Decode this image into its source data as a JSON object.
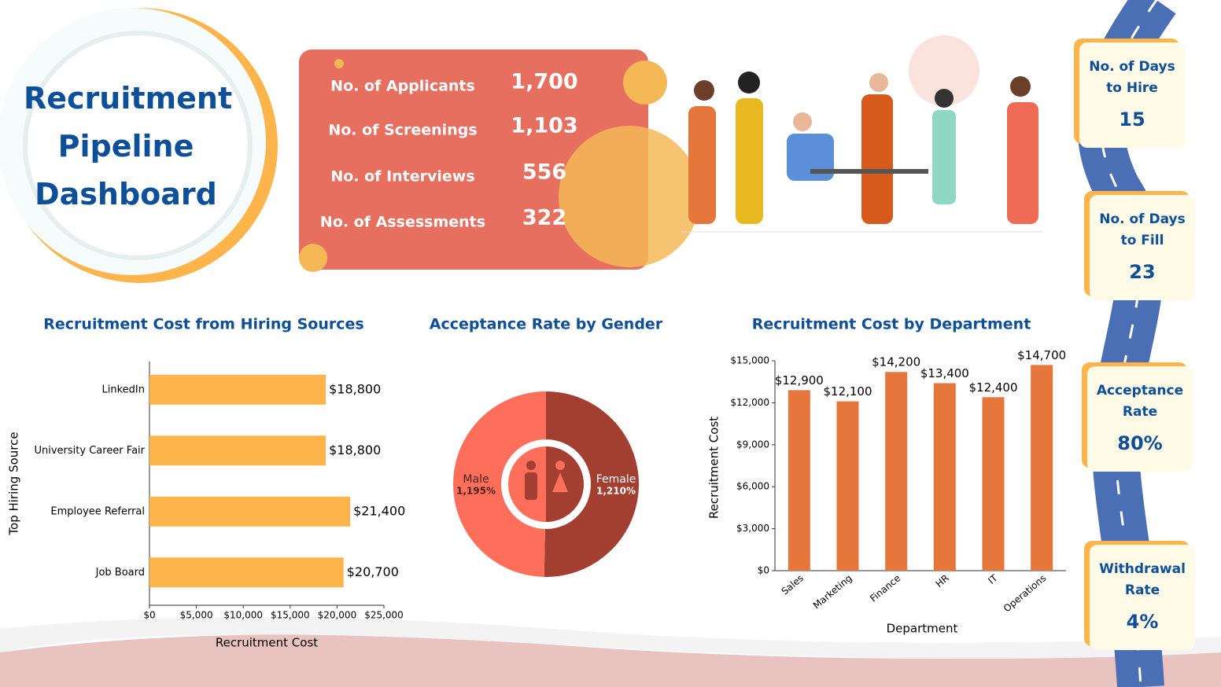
{
  "title": "Recruitment Pipeline Dashboard",
  "funnel": [
    {
      "label": "No. of Applicants",
      "value": "1,700"
    },
    {
      "label": "No. of Screenings",
      "value": "1,103"
    },
    {
      "label": "No. of Interviews",
      "value": "556"
    },
    {
      "label": "No. of Assessments",
      "value": "322"
    }
  ],
  "kpis": [
    {
      "label": "No. of Days to Hire",
      "value": "15"
    },
    {
      "label": "No. of Days to Fill",
      "value": "23"
    },
    {
      "label": "Acceptance Rate",
      "value": "80%"
    },
    {
      "label": "Withdrawal Rate",
      "value": "4%"
    }
  ],
  "chart_data": [
    {
      "type": "hbar",
      "title": "Recruitment Cost from Hiring Sources",
      "categories": [
        "LinkedIn",
        "University Career Fair",
        "Employee Referral",
        "Job Board"
      ],
      "values": [
        18800,
        18800,
        21400,
        20700
      ],
      "value_labels": [
        "$18,800",
        "$18,800",
        "$21,400",
        "$20,700"
      ],
      "color": "#fdb44b",
      "xlim": [
        0,
        25000
      ],
      "xticks": [
        {
          "value": 0,
          "label": "$0"
        },
        {
          "value": 5000,
          "label": "$5,000"
        },
        {
          "value": 10000,
          "label": "$10,000"
        },
        {
          "value": 15000,
          "label": "$15,000"
        },
        {
          "value": 20000,
          "label": "$20,000"
        },
        {
          "value": 25000,
          "label": "$25,000"
        }
      ],
      "xlabel": "Recruitment Cost",
      "ylabel": "Top Hiring Source"
    },
    {
      "type": "donut",
      "title": "Acceptance Rate by Gender",
      "categories": [
        "Male",
        "Female"
      ],
      "values": [
        1195,
        1210
      ],
      "value_labels": [
        "1,195%",
        "1,210%"
      ],
      "colors": [
        "#fd6f5a",
        "#a33f31"
      ]
    },
    {
      "type": "bar",
      "title": "Recruitment Cost by Department",
      "categories": [
        "Sales",
        "Marketing",
        "Finance",
        "HR",
        "IT",
        "Operations"
      ],
      "values": [
        12900,
        12100,
        14200,
        13400,
        12400,
        14700
      ],
      "value_labels": [
        "$12,900",
        "$12,100",
        "$14,200",
        "$13,400",
        "$12,400",
        "$14,700"
      ],
      "color": "#e5773d",
      "ylim": [
        0,
        15000
      ],
      "yticks": [
        {
          "value": 0,
          "label": "$0"
        },
        {
          "value": 3000,
          "label": "$3,000"
        },
        {
          "value": 6000,
          "label": "$6,000"
        },
        {
          "value": 9000,
          "label": "$9,000"
        },
        {
          "value": 12000,
          "label": "$12,000"
        },
        {
          "value": 15000,
          "label": "$15,000"
        }
      ],
      "xlabel": "Department",
      "ylabel": "Recruitment Cost"
    }
  ]
}
